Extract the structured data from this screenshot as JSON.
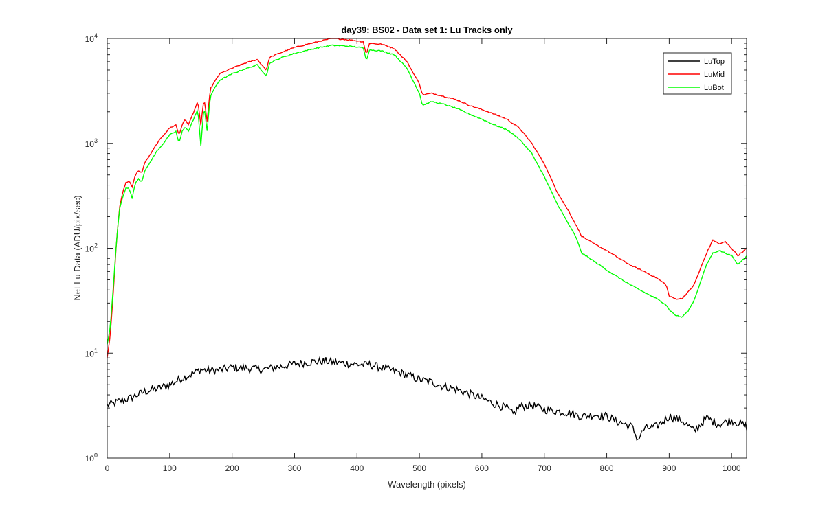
{
  "chart_data": {
    "type": "line",
    "title": "day39: BS02 - Data set 1: Lu Tracks only",
    "xlabel": "Wavelength (pixels)",
    "ylabel": "Net Lu Data (ADU/pix/sec)",
    "xlim": [
      0,
      1024
    ],
    "ylim": [
      1,
      10000
    ],
    "yscale": "log",
    "x_ticks": [
      "0",
      "100",
      "200",
      "300",
      "400",
      "500",
      "600",
      "700",
      "800",
      "900",
      "1000"
    ],
    "y_ticks": [
      {
        "base": "10",
        "exp": "0"
      },
      {
        "base": "10",
        "exp": "1"
      },
      {
        "base": "10",
        "exp": "2"
      },
      {
        "base": "10",
        "exp": "3"
      },
      {
        "base": "10",
        "exp": "4"
      }
    ],
    "legend_position": "top-right",
    "grid": false,
    "series": [
      {
        "name": "LuTop",
        "color": "#000000",
        "x": [
          0,
          10,
          20,
          30,
          40,
          60,
          80,
          100,
          120,
          140,
          150,
          160,
          180,
          200,
          220,
          250,
          280,
          300,
          330,
          350,
          380,
          400,
          420,
          450,
          480,
          500,
          520,
          540,
          560,
          580,
          600,
          620,
          640,
          650,
          660,
          680,
          700,
          720,
          740,
          760,
          780,
          800,
          820,
          840,
          850,
          860,
          880,
          900,
          920,
          940,
          960,
          980,
          1000,
          1024
        ],
        "y": [
          3.2,
          3.3,
          3.5,
          3.6,
          3.8,
          4.3,
          4.6,
          5.0,
          5.8,
          6.5,
          7.0,
          6.8,
          6.9,
          7.3,
          7.2,
          7.0,
          7.5,
          7.9,
          8.3,
          8.4,
          8.0,
          7.8,
          7.8,
          7.0,
          6.2,
          5.6,
          5.3,
          4.8,
          4.5,
          4.1,
          3.7,
          3.3,
          3.0,
          2.6,
          3.1,
          3.2,
          2.9,
          2.8,
          2.7,
          2.5,
          2.6,
          2.5,
          2.2,
          2.0,
          1.5,
          1.9,
          2.0,
          2.5,
          2.3,
          1.8,
          2.4,
          2.1,
          2.3,
          2.0
        ]
      },
      {
        "name": "LuMid",
        "color": "#ff0000",
        "x": [
          0,
          5,
          10,
          15,
          20,
          25,
          30,
          35,
          40,
          45,
          50,
          55,
          60,
          70,
          80,
          90,
          100,
          110,
          115,
          120,
          125,
          130,
          140,
          145,
          150,
          155,
          160,
          165,
          170,
          180,
          200,
          220,
          240,
          255,
          260,
          270,
          280,
          300,
          320,
          340,
          360,
          380,
          400,
          410,
          415,
          420,
          440,
          460,
          480,
          500,
          505,
          520,
          540,
          560,
          580,
          600,
          620,
          640,
          660,
          680,
          700,
          720,
          740,
          750,
          760,
          780,
          800,
          820,
          840,
          860,
          880,
          895,
          900,
          910,
          920,
          930,
          940,
          960,
          970,
          980,
          990,
          1000,
          1010,
          1020,
          1024
        ],
        "y": [
          9,
          15,
          40,
          120,
          250,
          350,
          420,
          440,
          380,
          500,
          550,
          520,
          650,
          800,
          1000,
          1200,
          1400,
          1500,
          1200,
          1500,
          1700,
          1500,
          2100,
          2500,
          1500,
          2700,
          1600,
          3300,
          3700,
          4600,
          5200,
          5800,
          6300,
          5000,
          6600,
          7000,
          7400,
          8200,
          8800,
          9400,
          10000,
          9800,
          9500,
          9300,
          7000,
          9000,
          8800,
          8000,
          6000,
          3700,
          2900,
          3000,
          2800,
          2600,
          2300,
          2100,
          1900,
          1700,
          1400,
          1000,
          640,
          350,
          220,
          170,
          130,
          110,
          95,
          80,
          68,
          60,
          52,
          45,
          35,
          33,
          33,
          38,
          45,
          90,
          120,
          110,
          115,
          100,
          85,
          95,
          100
        ]
      },
      {
        "name": "LuBot",
        "color": "#00ff00",
        "x": [
          0,
          5,
          10,
          15,
          20,
          25,
          30,
          35,
          40,
          45,
          50,
          55,
          60,
          70,
          80,
          90,
          100,
          110,
          115,
          120,
          125,
          130,
          140,
          145,
          150,
          155,
          160,
          165,
          170,
          180,
          200,
          220,
          240,
          255,
          260,
          270,
          280,
          300,
          320,
          340,
          360,
          380,
          400,
          410,
          415,
          420,
          440,
          460,
          480,
          500,
          505,
          520,
          540,
          560,
          580,
          600,
          620,
          640,
          660,
          680,
          700,
          720,
          740,
          750,
          760,
          780,
          800,
          820,
          840,
          860,
          880,
          895,
          900,
          910,
          920,
          930,
          940,
          960,
          970,
          980,
          990,
          1000,
          1010,
          1020,
          1024
        ],
        "y": [
          12,
          18,
          45,
          120,
          240,
          310,
          380,
          370,
          300,
          420,
          460,
          430,
          540,
          680,
          850,
          1000,
          1200,
          1300,
          1000,
          1300,
          1450,
          1300,
          1800,
          2100,
          950,
          2300,
          1300,
          2800,
          3200,
          4000,
          4600,
          5100,
          5600,
          4400,
          5800,
          6200,
          6600,
          7200,
          7700,
          8200,
          8600,
          8500,
          8300,
          8100,
          6200,
          7800,
          7600,
          7000,
          5200,
          3000,
          2300,
          2500,
          2350,
          2150,
          1900,
          1700,
          1500,
          1350,
          1100,
          800,
          480,
          270,
          165,
          130,
          90,
          75,
          62,
          52,
          44,
          38,
          33,
          29,
          26,
          23,
          22,
          25,
          32,
          70,
          90,
          95,
          90,
          85,
          70,
          80,
          85
        ]
      }
    ]
  }
}
